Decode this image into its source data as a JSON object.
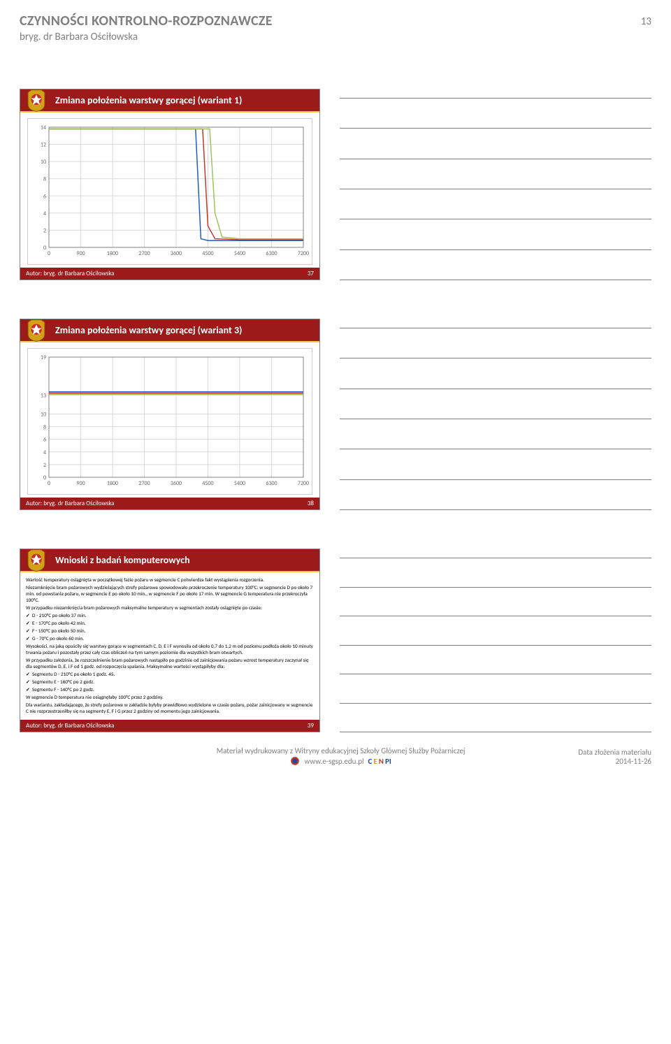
{
  "header": {
    "title": "CZYNNOŚCI KONTROLNO-ROZPOZNAWCZE",
    "subtitle": "bryg. dr Barbara Ościłowska",
    "page_number": "13"
  },
  "slides": [
    {
      "title": "Zmiana położenia warstwy gorącej (wariant 1)",
      "footer_author": "Autor: bryg. dr Barbara Ościłowska",
      "slide_num": "37",
      "chart": {
        "type": "line",
        "xlim": [
          0,
          7200
        ],
        "xtick_step": 900,
        "ylim": [
          0,
          14
        ],
        "ytick_step": 2,
        "background_color": "#ffffff",
        "grid_color": "#d9d9d9",
        "axis_color": "#808080",
        "line_width": 1.5,
        "series": [
          {
            "color": "#1f5fbf",
            "points": [
              [
                0,
                13.8
              ],
              [
                900,
                13.8
              ],
              [
                1800,
                13.8
              ],
              [
                2700,
                13.8
              ],
              [
                3600,
                13.8
              ],
              [
                4150,
                13.8
              ],
              [
                4300,
                1.0
              ],
              [
                4500,
                0.8
              ],
              [
                5400,
                0.8
              ],
              [
                6300,
                0.8
              ],
              [
                7200,
                0.8
              ]
            ]
          },
          {
            "color": "#c0392b",
            "points": [
              [
                0,
                13.8
              ],
              [
                900,
                13.8
              ],
              [
                1800,
                13.8
              ],
              [
                2700,
                13.8
              ],
              [
                3600,
                13.8
              ],
              [
                4350,
                13.8
              ],
              [
                4500,
                2.5
              ],
              [
                4700,
                1.0
              ],
              [
                5400,
                0.9
              ],
              [
                6300,
                0.9
              ],
              [
                7200,
                0.9
              ]
            ]
          },
          {
            "color": "#a0c25f",
            "points": [
              [
                0,
                13.8
              ],
              [
                900,
                13.8
              ],
              [
                1800,
                13.8
              ],
              [
                2700,
                13.8
              ],
              [
                3600,
                13.8
              ],
              [
                4550,
                13.8
              ],
              [
                4700,
                4.0
              ],
              [
                4900,
                1.2
              ],
              [
                5400,
                1.0
              ],
              [
                6300,
                1.0
              ],
              [
                7200,
                1.0
              ]
            ]
          }
        ]
      }
    },
    {
      "title": "Zmiana położenia warstwy gorącej (wariant 3)",
      "footer_author": "Autor: bryg. dr Barbara Ościłowska",
      "slide_num": "38",
      "chart": {
        "type": "line",
        "xlim": [
          0,
          7200
        ],
        "xtick_step": 900,
        "ylim": [
          0,
          19
        ],
        "yticks": [
          0,
          2,
          4,
          6,
          8,
          10,
          13,
          19
        ],
        "background_color": "#ffffff",
        "grid_color": "#d9d9d9",
        "axis_color": "#808080",
        "line_width": 1.5,
        "series": [
          {
            "color": "#1f5fbf",
            "points": [
              [
                0,
                13.5
              ],
              [
                7200,
                13.5
              ]
            ]
          },
          {
            "color": "#c0392b",
            "points": [
              [
                0,
                13.3
              ],
              [
                7200,
                13.3
              ]
            ]
          },
          {
            "color": "#a0c25f",
            "points": [
              [
                0,
                13.1
              ],
              [
                7200,
                13.1
              ]
            ]
          }
        ]
      }
    },
    {
      "title": "Wnioski z badań komputerowych",
      "footer_author": "Autor: bryg. dr Barbara Ościłowska",
      "slide_num": "39",
      "paragraphs": [
        "Wartość temperatury osiągnięta w początkowej fazie pożaru w segmencie C potwierdza fakt wystąpienia rozgorzenia.",
        "Niezamknięcie bram pożarowych wydzielających strefy pożarowe spowodowało przekroczenie temperatury 100°C: w segmencie D po około 7 min. od powstania pożaru, w segmencie E po około 10 min., w segmencie F po około 17 min. W segmencie G temperatura nie przekroczyła 100°C.",
        "W przypadku niezamknięcia bram pożarowych maksymalne temperatury w segmentach zostały osiągnięte po czasie:"
      ],
      "checks1": [
        "D - 210°C po około 37 min.",
        "E - 170°C po około 42 min.",
        "F - 150°C po około 50 min.",
        "G - 70°C po około 60 min."
      ],
      "paragraphs2": [
        "Wysokości, na jaką opuściły się warstwy gorące w segmentach C, D, E i F wynosiła od około 0,7 do 1,2 m od poziomu podłoża około 10 minuty trwania pożaru i pozostały przez cały czas obliczeń na tym samym poziomie dla wszystkich bram otwartych.",
        "W przypadku założenia, że rozszczelnienie bram pożarowych nastąpiło po godzinie od zainicjowania pożaru wzrost temperatury zaczynał się dla segmentów D, E, i F od 1 godz. od rozpoczęcia spalania. Maksymalne wartości wystąpiłyby dla:"
      ],
      "checks2": [
        "Segmentu D - 210°C po około 1 godz. 45.",
        "Segmentu E - 160°C po 2 godz.",
        "Segmentu F - 140°C po 2 godz."
      ],
      "paragraphs3": [
        "W segmencie D temperatura nie osiągnęłaby 100°C przez 2 godziny.",
        "Dla wariantu, zakładającego, że strefy pożarowe w zakładzie byłyby prawidłowo wydzielone w czasie pożaru, pożar zainicjowany w segmencie C nie rozprzestrzeniłby się na segmenty E, F i G przez 2 godziny od momentu jego zainicjowania."
      ]
    }
  ],
  "footer": {
    "line1": "Materiał wydrukowany z Witryny edukacyjnej Szkoły Głównej Służby Pożarniczej",
    "url": "www.e-sgsp.edu.pl",
    "right_label": "Data złożenia materiału",
    "right_date": "2014-11-26"
  },
  "note_lines_count": 7,
  "colors": {
    "header_red": "#9c1a1a",
    "accent_yellow": "#f3c94a",
    "grey_text": "#7f7f7f"
  }
}
